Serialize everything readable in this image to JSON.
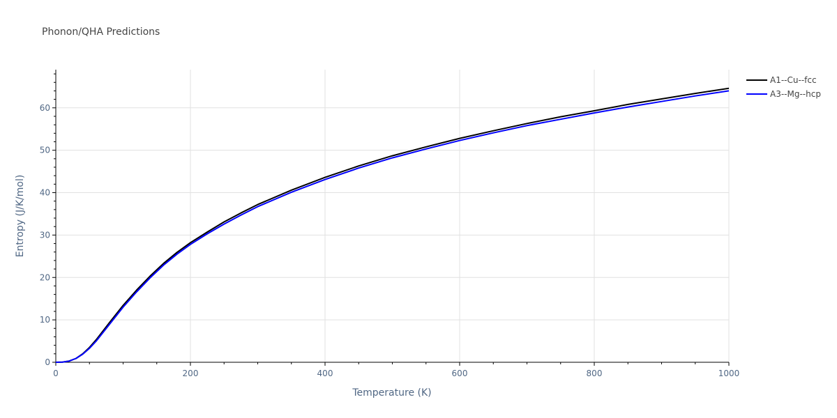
{
  "chart_data": {
    "type": "line",
    "title": "Phonon/QHA Predictions",
    "xlabel": "Temperature (K)",
    "ylabel": "Entropy (J/K/mol)",
    "xlim": [
      0,
      1000
    ],
    "ylim": [
      0,
      69
    ],
    "x_ticks": [
      0,
      200,
      400,
      600,
      800,
      1000
    ],
    "y_ticks": [
      0,
      10,
      20,
      30,
      40,
      50,
      60
    ],
    "grid": true,
    "legend_position": "top-right",
    "series": [
      {
        "name": "A1--Cu--fcc",
        "color": "#000000",
        "x": [
          0,
          10,
          20,
          30,
          40,
          50,
          60,
          80,
          100,
          120,
          140,
          160,
          180,
          200,
          225,
          250,
          275,
          300,
          350,
          400,
          450,
          500,
          550,
          600,
          650,
          700,
          750,
          800,
          850,
          900,
          950,
          1000
        ],
        "y": [
          0,
          0.05,
          0.3,
          0.9,
          2.0,
          3.5,
          5.3,
          9.4,
          13.4,
          17.0,
          20.3,
          23.3,
          25.9,
          28.2,
          30.7,
          33.1,
          35.2,
          37.2,
          40.6,
          43.6,
          46.3,
          48.7,
          50.8,
          52.8,
          54.6,
          56.3,
          57.9,
          59.3,
          60.8,
          62.1,
          63.4,
          64.6
        ]
      },
      {
        "name": "A3--Mg--hcp",
        "color": "#0000ff",
        "x": [
          0,
          10,
          20,
          30,
          40,
          50,
          60,
          80,
          100,
          120,
          140,
          160,
          180,
          200,
          225,
          250,
          275,
          300,
          350,
          400,
          450,
          500,
          550,
          600,
          650,
          700,
          750,
          800,
          850,
          900,
          950,
          1000
        ],
        "y": [
          0,
          0.05,
          0.3,
          0.9,
          1.9,
          3.3,
          5.0,
          9.0,
          13.0,
          16.6,
          19.9,
          22.9,
          25.5,
          27.8,
          30.3,
          32.6,
          34.7,
          36.7,
          40.1,
          43.1,
          45.8,
          48.2,
          50.3,
          52.3,
          54.1,
          55.8,
          57.3,
          58.8,
          60.2,
          61.5,
          62.8,
          64.0
        ]
      }
    ]
  }
}
